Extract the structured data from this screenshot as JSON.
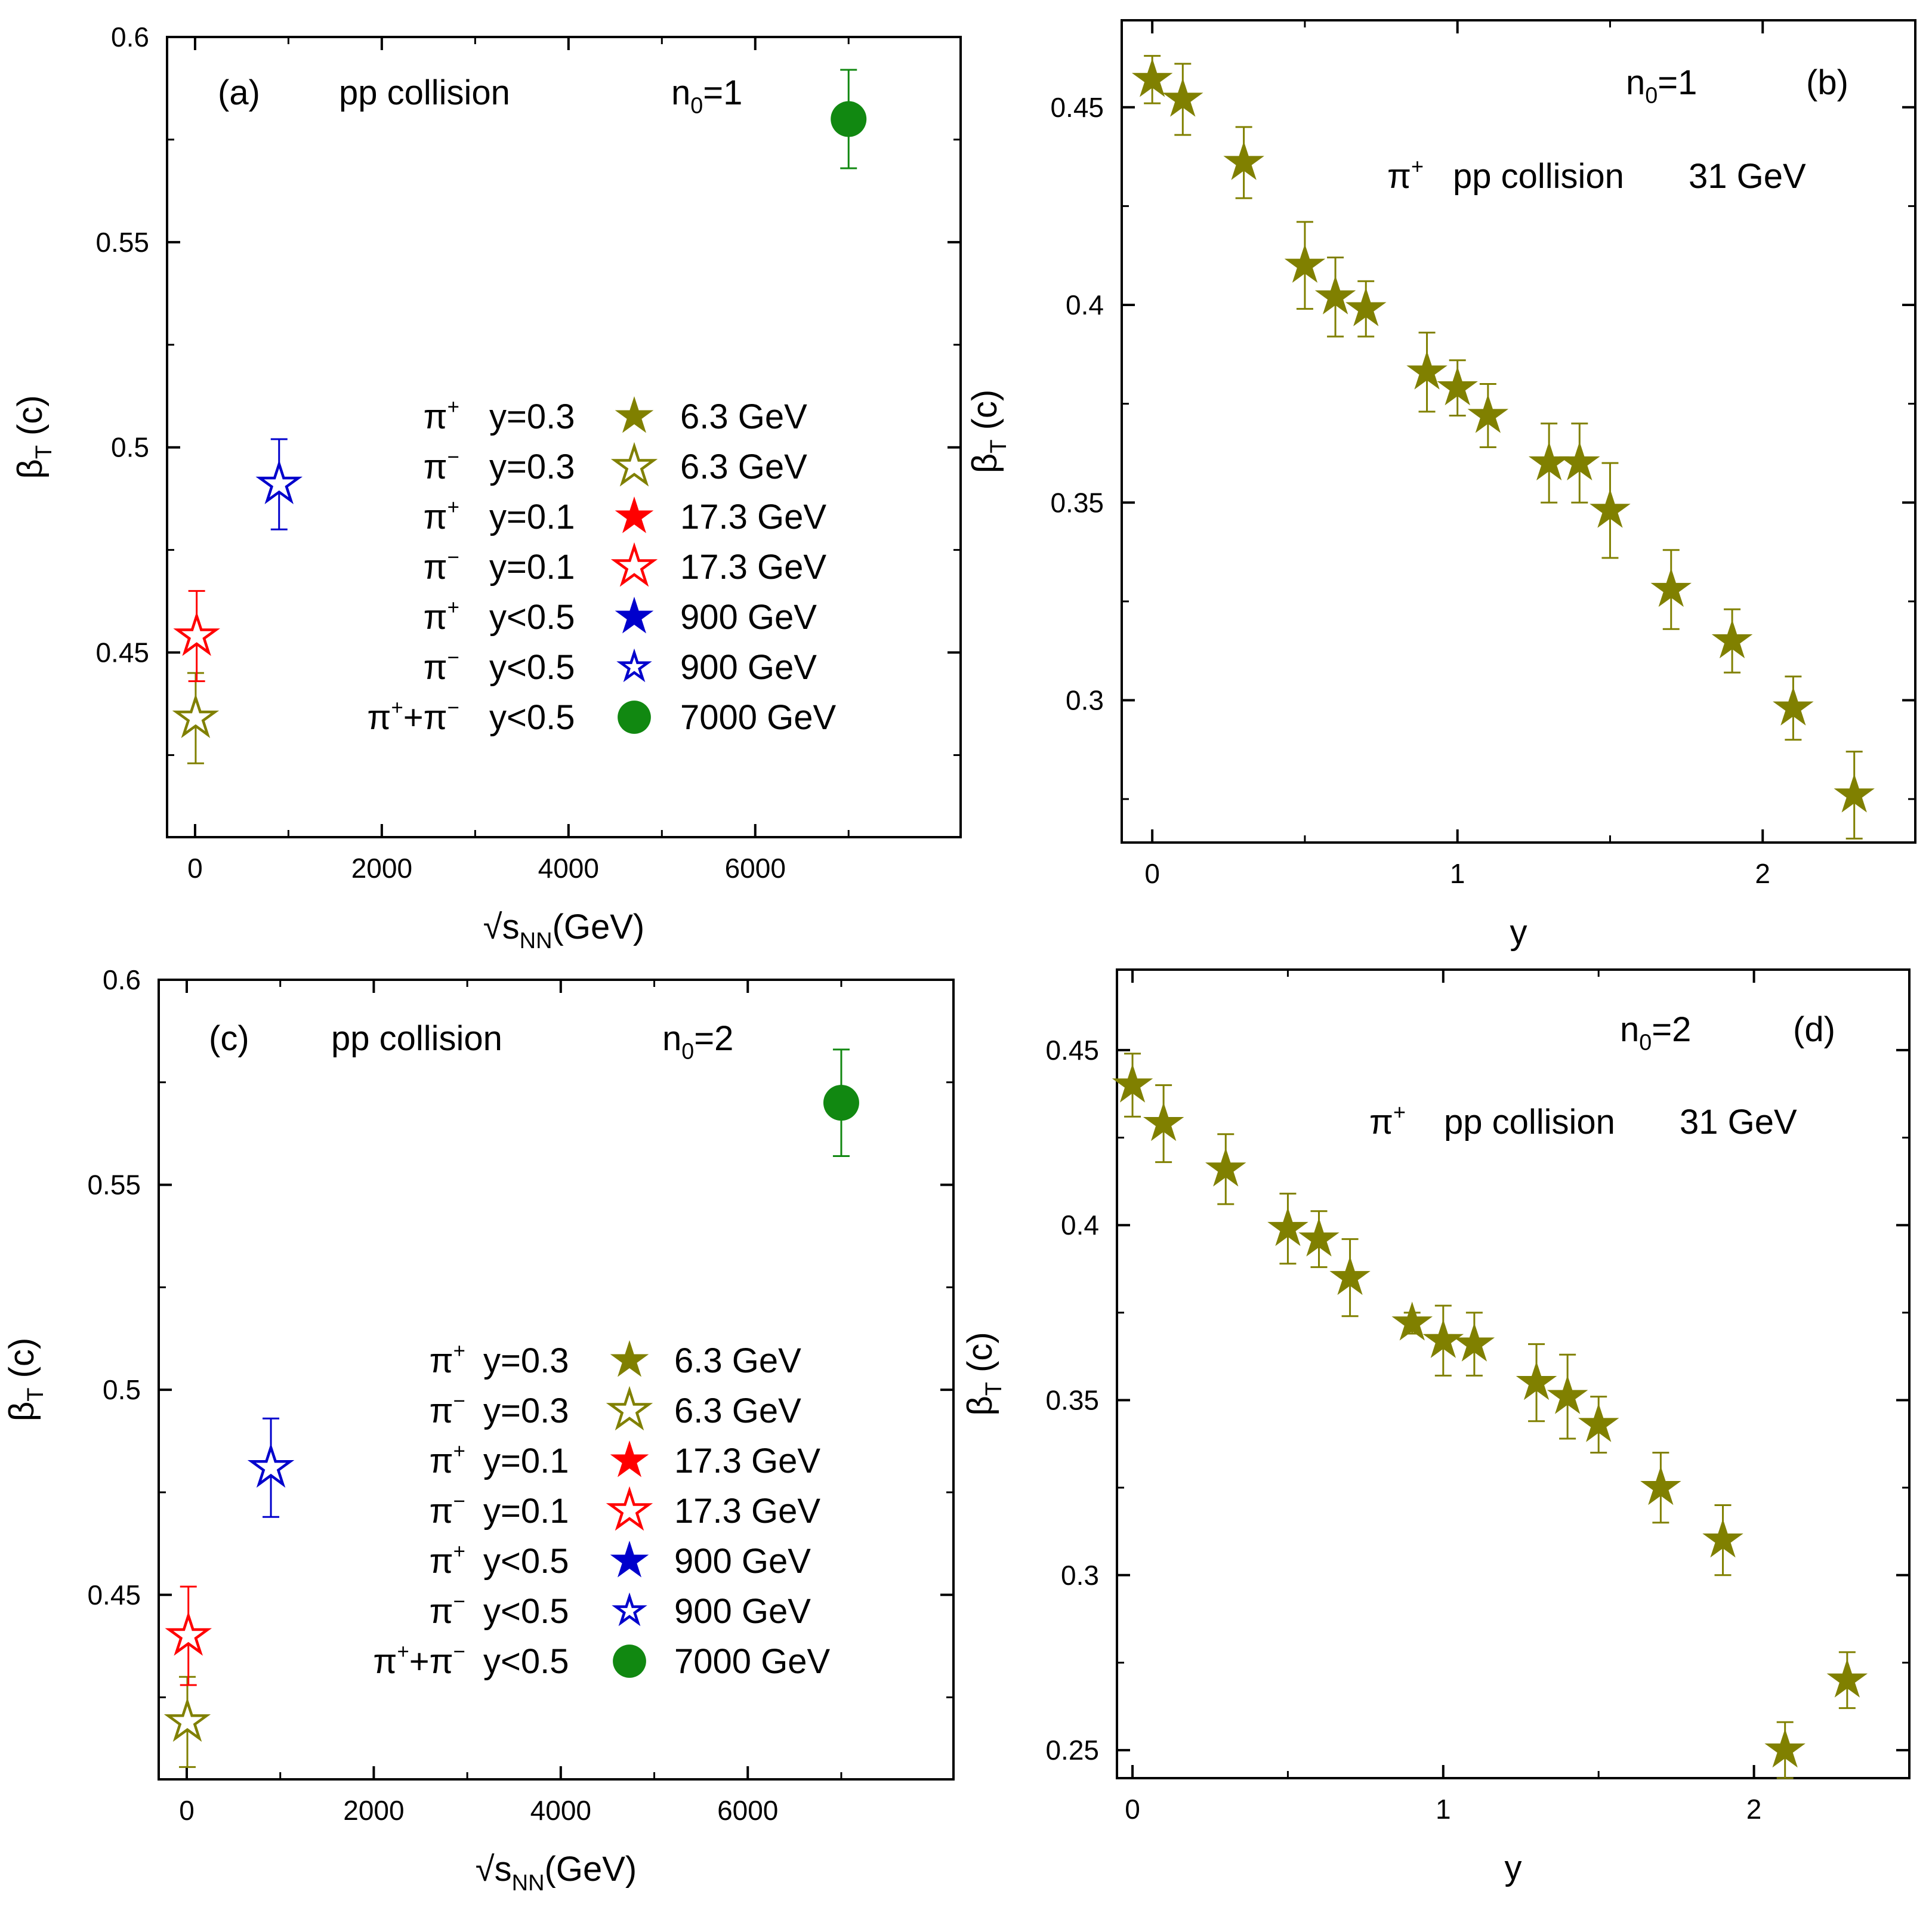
{
  "colors": {
    "olive": "#808000",
    "red": "#ff0000",
    "blue": "#0000cc",
    "green": "#118811",
    "axis": "#000000"
  },
  "chart_data": [
    {
      "panel": "a",
      "type": "scatter",
      "xlabel": "√sNN (GeV)",
      "ylabel": "βT (c)",
      "xlim": [
        -300,
        8200
      ],
      "ylim": [
        0.405,
        0.6
      ],
      "xticks": [
        "0",
        "2000",
        "4000",
        "6000"
      ],
      "yticks": [
        "0.45",
        "0.5",
        "0.55",
        "0.6"
      ],
      "annotations": {
        "label": "(a)",
        "system": "pp collision",
        "n0": "n0=1"
      },
      "legend": [
        {
          "particle": "π+",
          "y": "y=0.3",
          "energy": "6.3 GeV",
          "marker": "star-filled",
          "color": "olive"
        },
        {
          "particle": "π−",
          "y": "y=0.3",
          "energy": "6.3 GeV",
          "marker": "star-open",
          "color": "olive"
        },
        {
          "particle": "π+",
          "y": "y=0.1",
          "energy": "17.3 GeV",
          "marker": "star-filled",
          "color": "red"
        },
        {
          "particle": "π−",
          "y": "y=0.1",
          "energy": "17.3 GeV",
          "marker": "star-open",
          "color": "red"
        },
        {
          "particle": "π+",
          "y": "y<0.5",
          "energy": "900 GeV",
          "marker": "star-filled",
          "color": "blue"
        },
        {
          "particle": "π−",
          "y": "y<0.5",
          "energy": "900 GeV",
          "marker": "star-open",
          "color": "blue"
        },
        {
          "particle": "π++π−",
          "y": "y<0.5",
          "energy": "7000 GeV",
          "marker": "circle",
          "color": "green"
        }
      ],
      "points": [
        {
          "x": 6.3,
          "y": 0.434,
          "err": 0.011,
          "marker": "star-open",
          "color": "olive"
        },
        {
          "x": 17.3,
          "y": 0.454,
          "err": 0.011,
          "marker": "star-open",
          "color": "red"
        },
        {
          "x": 900,
          "y": 0.491,
          "err": 0.011,
          "marker": "star-open",
          "color": "blue"
        },
        {
          "x": 7000,
          "y": 0.58,
          "err": 0.012,
          "marker": "circle",
          "color": "green"
        }
      ]
    },
    {
      "panel": "b",
      "type": "scatter",
      "xlabel": "y",
      "ylabel": "βT (c)",
      "xlim": [
        -0.1,
        2.5
      ],
      "ylim": [
        0.264,
        0.472
      ],
      "xticks": [
        "0",
        "1",
        "2"
      ],
      "yticks": [
        "0.3",
        "0.35",
        "0.4",
        "0.45"
      ],
      "annotations": {
        "label": "(b)",
        "n0": "n0=1",
        "particle": "π+",
        "system": "pp collision",
        "energy": "31 GeV"
      },
      "points": [
        {
          "x": 0.0,
          "y": 0.457,
          "err": 0.006
        },
        {
          "x": 0.1,
          "y": 0.452,
          "err": 0.009
        },
        {
          "x": 0.3,
          "y": 0.436,
          "err": 0.009
        },
        {
          "x": 0.5,
          "y": 0.41,
          "err": 0.011
        },
        {
          "x": 0.6,
          "y": 0.402,
          "err": 0.01
        },
        {
          "x": 0.7,
          "y": 0.399,
          "err": 0.007
        },
        {
          "x": 0.9,
          "y": 0.383,
          "err": 0.01
        },
        {
          "x": 1.0,
          "y": 0.379,
          "err": 0.007
        },
        {
          "x": 1.1,
          "y": 0.372,
          "err": 0.008
        },
        {
          "x": 1.3,
          "y": 0.36,
          "err": 0.01
        },
        {
          "x": 1.4,
          "y": 0.36,
          "err": 0.01
        },
        {
          "x": 1.5,
          "y": 0.348,
          "err": 0.012
        },
        {
          "x": 1.7,
          "y": 0.328,
          "err": 0.01
        },
        {
          "x": 1.9,
          "y": 0.315,
          "err": 0.008
        },
        {
          "x": 2.1,
          "y": 0.298,
          "err": 0.008
        },
        {
          "x": 2.3,
          "y": 0.276,
          "err": 0.011
        }
      ]
    },
    {
      "panel": "c",
      "type": "scatter",
      "xlabel": "√sNN (GeV)",
      "ylabel": "βT (c)",
      "xlim": [
        -300,
        8200
      ],
      "ylim": [
        0.405,
        0.6
      ],
      "xticks": [
        "0",
        "2000",
        "4000",
        "6000"
      ],
      "yticks": [
        "0.45",
        "0.5",
        "0.55",
        "0.6"
      ],
      "annotations": {
        "label": "(c)",
        "system": "pp collision",
        "n0": "n0=2"
      },
      "legend": [
        {
          "particle": "π+",
          "y": "y=0.3",
          "energy": "6.3 GeV",
          "marker": "star-filled",
          "color": "olive"
        },
        {
          "particle": "π−",
          "y": "y=0.3",
          "energy": "6.3 GeV",
          "marker": "star-open",
          "color": "olive"
        },
        {
          "particle": "π+",
          "y": "y=0.1",
          "energy": "17.3 GeV",
          "marker": "star-filled",
          "color": "red"
        },
        {
          "particle": "π−",
          "y": "y=0.1",
          "energy": "17.3 GeV",
          "marker": "star-open",
          "color": "red"
        },
        {
          "particle": "π+",
          "y": "y<0.5",
          "energy": "900 GeV",
          "marker": "star-filled",
          "color": "blue"
        },
        {
          "particle": "π−",
          "y": "y<0.5",
          "energy": "900 GeV",
          "marker": "star-open",
          "color": "blue"
        },
        {
          "particle": "π++π−",
          "y": "y<0.5",
          "energy": "7000 GeV",
          "marker": "circle",
          "color": "green"
        }
      ],
      "points": [
        {
          "x": 6.3,
          "y": 0.419,
          "err": 0.011,
          "marker": "star-open",
          "color": "olive"
        },
        {
          "x": 17.3,
          "y": 0.44,
          "err": 0.012,
          "marker": "star-open",
          "color": "red"
        },
        {
          "x": 900,
          "y": 0.481,
          "err": 0.012,
          "marker": "star-open",
          "color": "blue"
        },
        {
          "x": 7000,
          "y": 0.57,
          "err": 0.013,
          "marker": "circle",
          "color": "green"
        }
      ]
    },
    {
      "panel": "d",
      "type": "scatter",
      "xlabel": "y",
      "ylabel": "βT (c)",
      "xlim": [
        -0.05,
        2.5
      ],
      "ylim": [
        0.242,
        0.473
      ],
      "xticks": [
        "0",
        "1",
        "2"
      ],
      "yticks": [
        "0.25",
        "0.3",
        "0.35",
        "0.4",
        "0.45"
      ],
      "annotations": {
        "label": "(d)",
        "n0": "n0=2",
        "particle": "π+",
        "system": "pp collision",
        "energy": "31 GeV"
      },
      "points": [
        {
          "x": 0.0,
          "y": 0.44,
          "err": 0.009
        },
        {
          "x": 0.1,
          "y": 0.429,
          "err": 0.011
        },
        {
          "x": 0.3,
          "y": 0.416,
          "err": 0.01
        },
        {
          "x": 0.5,
          "y": 0.399,
          "err": 0.01
        },
        {
          "x": 0.6,
          "y": 0.396,
          "err": 0.008
        },
        {
          "x": 0.7,
          "y": 0.385,
          "err": 0.011
        },
        {
          "x": 0.9,
          "y": 0.372,
          "err": 0.003
        },
        {
          "x": 1.0,
          "y": 0.367,
          "err": 0.01
        },
        {
          "x": 1.1,
          "y": 0.366,
          "err": 0.009
        },
        {
          "x": 1.3,
          "y": 0.355,
          "err": 0.011
        },
        {
          "x": 1.4,
          "y": 0.351,
          "err": 0.012
        },
        {
          "x": 1.5,
          "y": 0.343,
          "err": 0.008
        },
        {
          "x": 1.7,
          "y": 0.325,
          "err": 0.01
        },
        {
          "x": 1.9,
          "y": 0.31,
          "err": 0.01
        },
        {
          "x": 2.1,
          "y": 0.25,
          "err": 0.008
        },
        {
          "x": 2.3,
          "y": 0.27,
          "err": 0.008
        }
      ]
    }
  ]
}
